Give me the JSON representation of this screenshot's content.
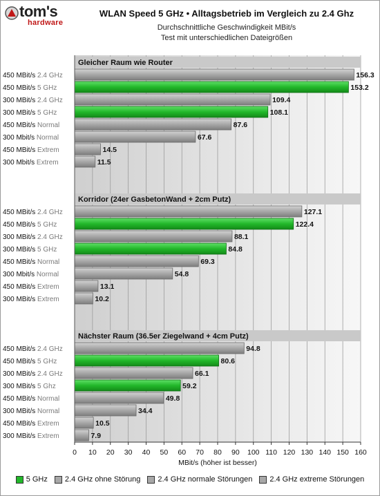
{
  "header": {
    "logo_text": "tom's",
    "logo_sub": "hardware",
    "title": "WLAN Speed 5 GHz • Alltagsbetrieb im Vergleich zu 2.4 Ghz",
    "subtitle1": "Durchschnittliche Geschwindigkeit MBit/s",
    "subtitle2": "Test mit unterschiedlichen Dateigrößen"
  },
  "colors": {
    "green": "#22b82a",
    "gray": "#a8a8a8",
    "label_gray": "#7a7a7a",
    "label_dark": "#111111",
    "group_header_bg": "#c9c9c9"
  },
  "chart_data": {
    "type": "bar",
    "orientation": "horizontal",
    "xlabel": "MBit/s (höher ist besser)",
    "xlim": [
      0,
      160
    ],
    "xticks": [
      0,
      10,
      20,
      30,
      40,
      50,
      60,
      70,
      80,
      90,
      100,
      110,
      120,
      130,
      140,
      150,
      160
    ],
    "grid": true,
    "legend_position": "bottom",
    "groups": [
      {
        "name": "Gleicher Raum wie Router",
        "bars": [
          {
            "label_main": "450 MBit/s",
            "label_sub": "2.4 GHz",
            "value": 156.3,
            "color": "gray"
          },
          {
            "label_main": "450 MBit/s",
            "label_sub": "5 GHz",
            "value": 153.2,
            "color": "green"
          },
          {
            "label_main": "300 MBit/s",
            "label_sub": "2.4 GHz",
            "value": 109.4,
            "color": "gray"
          },
          {
            "label_main": "300 MBit/s",
            "label_sub": "5 GHz",
            "value": 108.1,
            "color": "green"
          },
          {
            "label_main": "450 MBit/s",
            "label_sub": "Normal",
            "value": 87.6,
            "color": "gray"
          },
          {
            "label_main": "300 Mbit/s",
            "label_sub": "Normal",
            "value": 67.6,
            "color": "gray"
          },
          {
            "label_main": "450 MBit/s",
            "label_sub": "Extrem",
            "value": 14.5,
            "color": "gray"
          },
          {
            "label_main": "300 Mbit/s",
            "label_sub": "Extrem",
            "value": 11.5,
            "color": "gray"
          }
        ]
      },
      {
        "name": "Korridor (24er GasbetonWand + 2cm Putz)",
        "bars": [
          {
            "label_main": "450 MBit/s",
            "label_sub": "2.4 GHz",
            "value": 127.1,
            "color": "gray"
          },
          {
            "label_main": "450 MBit/s",
            "label_sub": "5 GHz",
            "value": 122.4,
            "color": "green"
          },
          {
            "label_main": "300 MBit/s",
            "label_sub": "2.4 GHz",
            "value": 88.1,
            "color": "gray"
          },
          {
            "label_main": "300 MBit/s",
            "label_sub": "5 GHz",
            "value": 84.8,
            "color": "green"
          },
          {
            "label_main": "450 MBit/s",
            "label_sub": "Normal",
            "value": 69.3,
            "color": "gray"
          },
          {
            "label_main": "300 Mbit/s",
            "label_sub": "Normal",
            "value": 54.8,
            "color": "gray"
          },
          {
            "label_main": "450 MBit/s",
            "label_sub": "Extrem",
            "value": 13.1,
            "color": "gray"
          },
          {
            "label_main": "300 MBit/s",
            "label_sub": "Extrem",
            "value": 10.2,
            "color": "gray"
          }
        ]
      },
      {
        "name": "Nächster Raum (36.5er Ziegelwand + 4cm Putz)",
        "bars": [
          {
            "label_main": "450 MBit/s",
            "label_sub": "2.4 GHz",
            "value": 94.8,
            "color": "gray"
          },
          {
            "label_main": "450 MBit/s",
            "label_sub": "5 GHz",
            "value": 80.6,
            "color": "green"
          },
          {
            "label_main": "300 MBit/s",
            "label_sub": "2.4 GHz",
            "value": 66.1,
            "color": "gray"
          },
          {
            "label_main": "300 MBit/s",
            "label_sub": "5 Ghz",
            "value": 59.2,
            "color": "green"
          },
          {
            "label_main": "450 MBit/s",
            "label_sub": "Normal",
            "value": 49.8,
            "color": "gray"
          },
          {
            "label_main": "300 MBit/s",
            "label_sub": "Normal",
            "value": 34.4,
            "color": "gray"
          },
          {
            "label_main": "450 MBit/s",
            "label_sub": "Extrem",
            "value": 10.5,
            "color": "gray"
          },
          {
            "label_main": "300 MBit/s",
            "label_sub": "Extrem",
            "value": 7.9,
            "color": "gray"
          }
        ]
      }
    ],
    "legend": [
      {
        "label": "5 GHz",
        "color": "green"
      },
      {
        "label": "2.4 GHz ohne Störung",
        "color": "gray"
      },
      {
        "label": "2.4 GHz normale Störungen",
        "color": "gray"
      },
      {
        "label": "2.4 GHz extreme Störungen",
        "color": "gray"
      }
    ]
  }
}
